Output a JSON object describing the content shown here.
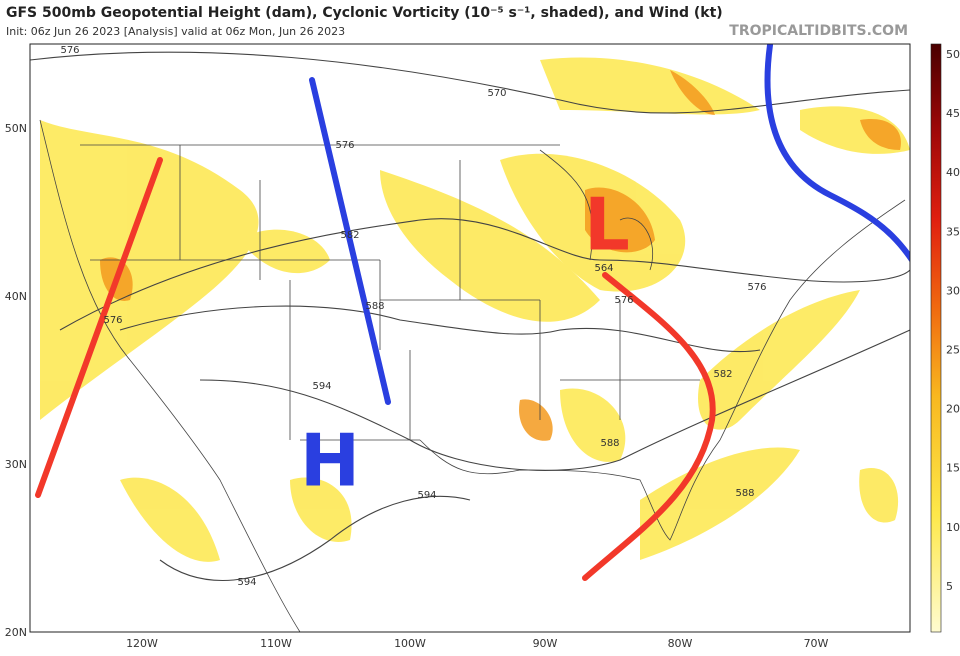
{
  "header": {
    "title": "GFS 500mb Geopotential Height (dam), Cyclonic Vorticity (10⁻⁵ s⁻¹, shaded), and Wind (kt)",
    "subtitle": "Init: 06z Jun 26 2023   [Analysis]   valid at 06z Mon, Jun 26 2023",
    "watermark": "TROPICALTIDBITS.COM"
  },
  "colorbar": {
    "ticks": [
      "50",
      "45",
      "40",
      "35",
      "30",
      "25",
      "20",
      "15",
      "10",
      "5"
    ]
  },
  "axes": {
    "lat_labels": [
      "50N",
      "40N",
      "30N",
      "20N"
    ],
    "lon_labels": [
      "120W",
      "110W",
      "100W",
      "90W",
      "80W",
      "70W"
    ]
  },
  "contour_labels": [
    "576",
    "570",
    "576",
    "582",
    "588",
    "594",
    "594",
    "594",
    "588",
    "588",
    "582",
    "576",
    "576",
    "564",
    "576"
  ],
  "features": {
    "high": "H",
    "low": "L"
  }
}
